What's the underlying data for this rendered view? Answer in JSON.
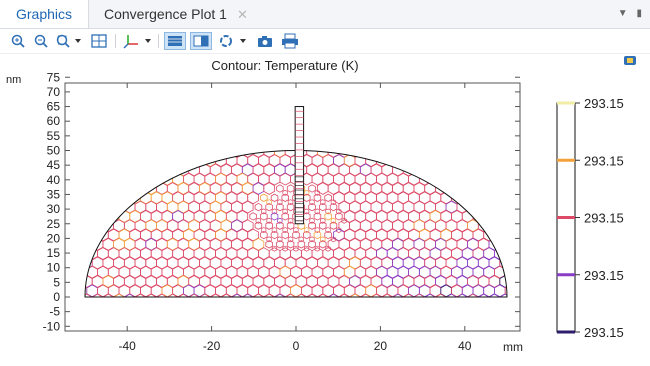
{
  "tabs": [
    {
      "label": "Graphics",
      "active": true
    },
    {
      "label": "Convergence Plot 1",
      "active": false
    }
  ],
  "toolbar": {
    "icons": [
      "zoom-in-icon",
      "zoom-out-icon",
      "zoom-box-icon",
      "zoom-extents-icon",
      "axes-icon",
      "table-view-icon",
      "split-view-icon",
      "scene-light-icon",
      "camera-icon",
      "print-icon"
    ]
  },
  "plot": {
    "title": "Contour: Temperature (K)",
    "x_unit": "mm",
    "y_unit": "nm",
    "x_ticks": [
      "-40",
      "-20",
      "0",
      "20",
      "40"
    ],
    "y_ticks": [
      "75",
      "70",
      "65",
      "60",
      "55",
      "50",
      "45",
      "40",
      "35",
      "30",
      "25",
      "20",
      "15",
      "10",
      "5",
      "0",
      "-5",
      "-10"
    ]
  },
  "legend": {
    "labels": [
      "293.15",
      "293.15",
      "293.15",
      "293.15",
      "293.15"
    ],
    "colors": [
      "#f2eda4",
      "#f4a13a",
      "#dc4a67",
      "#8a3cc4",
      "#2c1c6b"
    ]
  },
  "chart_data": {
    "type": "contour",
    "title": "Contour: Temperature (K)",
    "xlabel": "mm",
    "ylabel": "nm",
    "xlim": [
      -52,
      52
    ],
    "ylim": [
      -12,
      80
    ],
    "levels": [
      293.15,
      293.15,
      293.15,
      293.15,
      293.15
    ],
    "level_colors": [
      "#f2eda4",
      "#f4a13a",
      "#dc4a67",
      "#8a3cc4",
      "#2c1c6b"
    ],
    "domain": "half-disk radius 50 centered at origin with vertical probe from y=25 to y=65 at x≈1"
  }
}
